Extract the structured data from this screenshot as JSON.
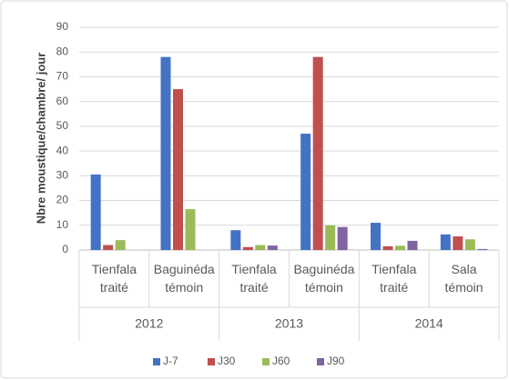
{
  "chart_data": {
    "type": "bar",
    "y_label": "Nbre moustique/chambre/ jour",
    "groups": [
      {
        "name": "2012",
        "categories": [
          "Tienfala traité",
          "Baguinéda témoin"
        ]
      },
      {
        "name": "2013",
        "categories": [
          "Tienfala traité",
          "Baguinéda témoin"
        ]
      },
      {
        "name": "2014",
        "categories": [
          "Tienfala traité",
          "Sala témoin"
        ]
      }
    ],
    "series": [
      {
        "name": "J-7",
        "color": "#4472c4",
        "values": [
          30.5,
          78,
          8,
          47,
          11,
          6.3
        ]
      },
      {
        "name": "J30",
        "color": "#c0504d",
        "values": [
          2,
          65,
          1.2,
          78,
          1.5,
          5.5
        ]
      },
      {
        "name": "J60",
        "color": "#9bbb59",
        "values": [
          4,
          16.5,
          2,
          10,
          1.7,
          4.3
        ]
      },
      {
        "name": "J90",
        "color": "#8064a2",
        "values": [
          null,
          null,
          1.8,
          9.3,
          3.7,
          0.4
        ]
      }
    ],
    "ylim": [
      0,
      90
    ],
    "yticks": [
      0,
      10,
      20,
      30,
      40,
      50,
      60,
      70,
      80,
      90
    ],
    "grid": true,
    "legend": "bottom"
  }
}
